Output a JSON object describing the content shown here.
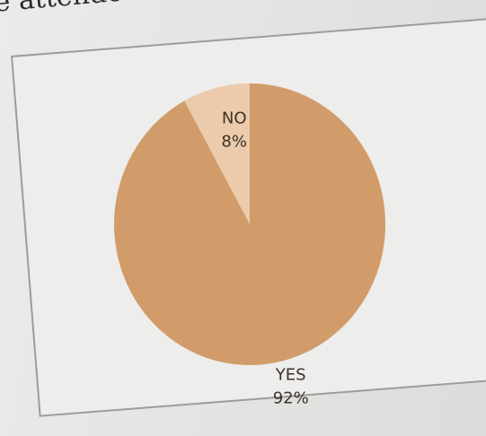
{
  "caption": "e attended the PTM co",
  "chart_data": {
    "type": "pie",
    "categories": [
      "NO",
      "YES"
    ],
    "values": [
      8,
      92
    ],
    "value_labels": [
      "8%",
      "92%"
    ],
    "colors": [
      "#ebcbab",
      "#d19c6a"
    ],
    "label_color": "#3d3126"
  }
}
